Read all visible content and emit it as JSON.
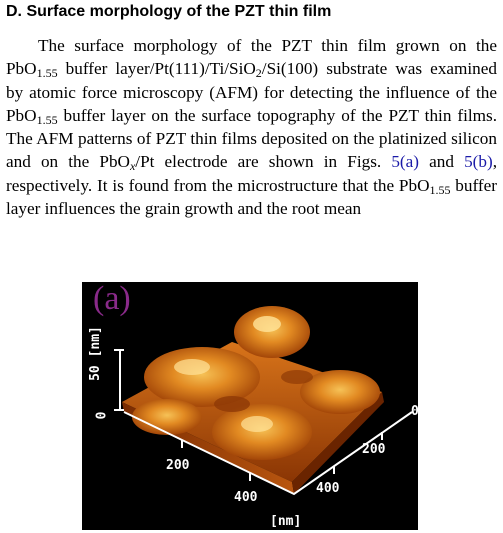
{
  "section": {
    "heading": "D. Surface morphology of the PZT thin film"
  },
  "paragraph": {
    "t1": "The surface morphology of the PZT thin film grown on the PbO",
    "s1": "1.55",
    "t2": " buffer layer/Pt(111)/Ti/SiO",
    "s2": "2",
    "t3": "/Si(100) substrate was examined by atomic force microscopy (AFM) for detecting the influence of the PbO",
    "s3": "1.55",
    "t4": " buffer layer on the surface topography of the PZT thin films. The AFM patterns of PZT thin films deposited on the platinized silicon and on the PbO",
    "s4": "x",
    "t5": "/Pt electrode are shown in Figs. ",
    "ref_a": "5(a)",
    "t6": " and ",
    "ref_b": "5(b)",
    "t7": ", respectively. It is found from the microstructure that the PbO",
    "s5": "1.55",
    "t8": " buffer layer influences the grain growth and the root mean"
  },
  "figure": {
    "panel_label": "(a)",
    "z_axis_label": "50 [nm]",
    "z_tick_zero": "0",
    "x_tick_200": "200",
    "x_tick_400": "400",
    "x_axis_label": "[nm]",
    "y_tick_0": "0",
    "y_tick_200": "200",
    "y_tick_400": "400",
    "colors": {
      "background": "#000000",
      "surface_dark": "#5a1e00",
      "surface_mid": "#d2700e",
      "surface_light": "#f6c257",
      "label": "#8a2a8a",
      "link": "#1a1aa8"
    }
  }
}
